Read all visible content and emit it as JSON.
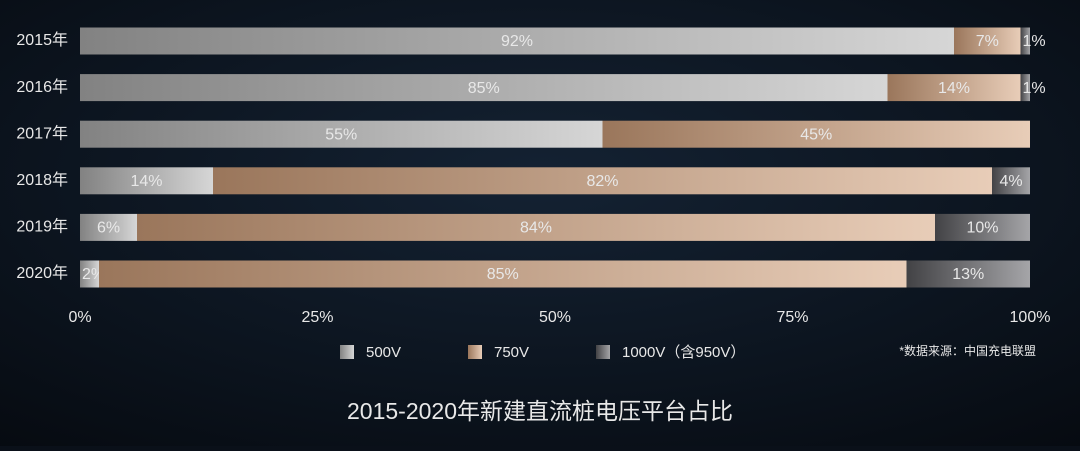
{
  "chart_data": {
    "type": "stacked_bar_horizontal",
    "title": "2015-2020年新建直流桩电压平台占比",
    "source_note": "*数据来源：中国充电联盟",
    "categories": [
      "2015年",
      "2016年",
      "2017年",
      "2018年",
      "2019年",
      "2020年"
    ],
    "series": [
      {
        "name": "500V",
        "color": "#b4b4b4",
        "values": [
          92,
          85,
          55,
          14,
          6,
          2
        ],
        "value_labels": [
          "92%",
          "85%",
          "55%",
          "14%",
          "6%",
          "2%"
        ]
      },
      {
        "name": "750V",
        "color": "#d6a47e",
        "values": [
          7,
          14,
          45,
          82,
          84,
          85
        ],
        "value_labels": [
          "7%",
          "14%",
          "45%",
          "82%",
          "84%",
          "85%"
        ]
      },
      {
        "name": "1000V（含950V）",
        "color": "#5c5c60",
        "values": [
          1,
          1,
          0,
          4,
          10,
          13
        ],
        "value_labels": [
          "1%",
          "1%",
          null,
          "4%",
          "10%",
          "13%"
        ]
      }
    ],
    "xlim": [
      0,
      100
    ],
    "xticks": [
      {
        "value": 0,
        "label": "0%"
      },
      {
        "value": 25,
        "label": "25%"
      },
      {
        "value": 50,
        "label": "50%"
      },
      {
        "value": 75,
        "label": "75%"
      },
      {
        "value": 100,
        "label": "100%"
      }
    ]
  }
}
